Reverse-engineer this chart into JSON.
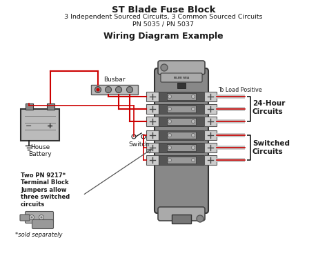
{
  "title_line1": "ST Blade Fuse Block",
  "title_line2": "3 Independent Sourced Circuits, 3 Common Sourced Circuits",
  "title_line3": "PN 5035 / PN 5037",
  "subtitle": "Wiring Diagram Example",
  "label_busbar": "Busbar",
  "label_house_battery": "House\nBattery",
  "label_switch": "Switch",
  "label_to_load": "To Load Positive",
  "label_24hr": "24-Hour\nCircuits",
  "label_switched": "Switched\nCircuits",
  "label_pn9217": "Two PN 9217*\nTerminal Block\nJumpers allow\nthree switched\ncircuits",
  "label_sold": "*sold separately",
  "bg_color": "#ffffff",
  "red_color": "#cc0000",
  "dark_color": "#1a1a1a",
  "gray_color": "#888888",
  "fuse_block_body": "#777777",
  "fuse_block_edge": "#444444",
  "fuse_block_inner": "#555555",
  "terminal_color": "#cccccc",
  "busbar_fill": "#cccccc",
  "battery_fill": "#bbbbbb",
  "wire_white": "#dddddd"
}
